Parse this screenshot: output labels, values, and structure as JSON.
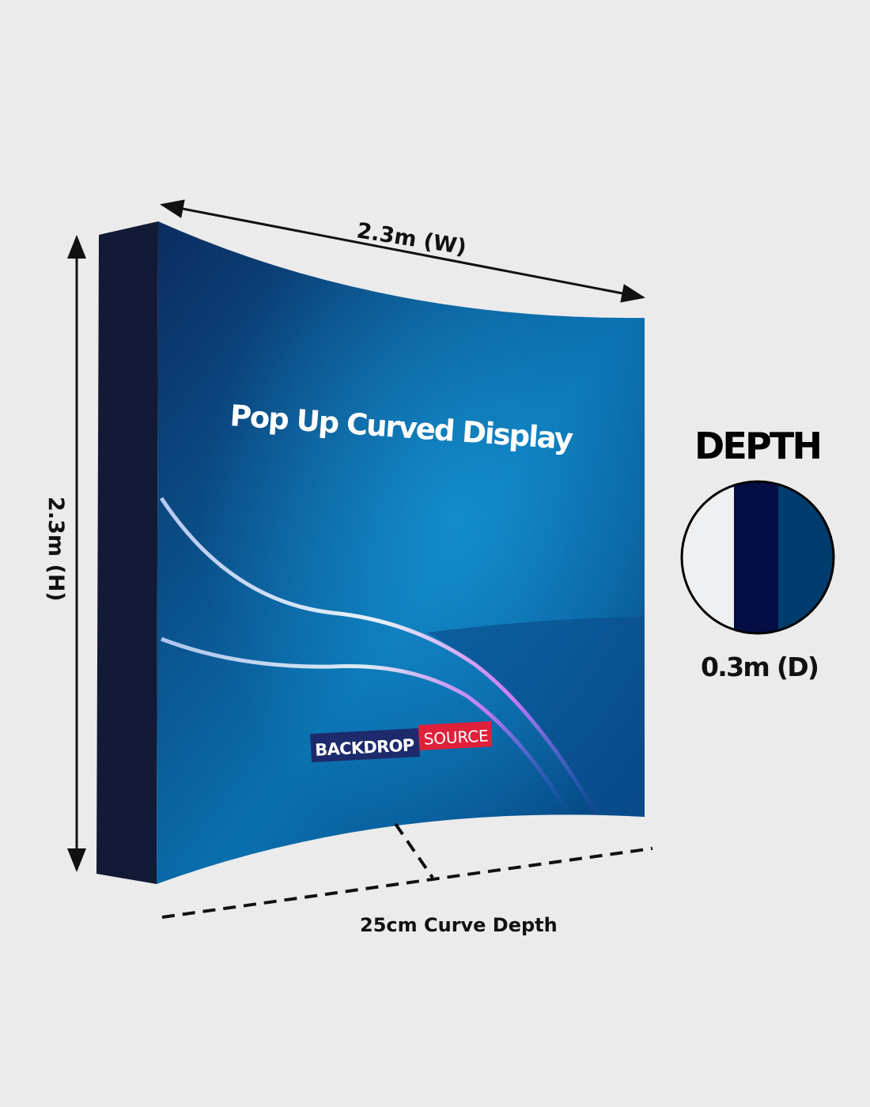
{
  "product": {
    "title": "Pop Up Curved Display",
    "logo": {
      "part1": "BACKDROP",
      "part2": "SOURCE",
      "color1": "#1d2a6b",
      "color2": "#e0203a"
    }
  },
  "dimensions": {
    "width_label": "2.3m (W)",
    "height_label": "2.3m (H)",
    "curve_depth_label": "25cm Curve Depth",
    "depth_heading": "DEPTH",
    "depth_label": "0.3m (D)"
  },
  "colors": {
    "background": "#ebebeb",
    "side_panel": "#121a35",
    "graphic_dark": "#0b2d63",
    "graphic_light": "#0a78b5",
    "depth_navy": "#050d45",
    "depth_blue": "#003d6e"
  }
}
